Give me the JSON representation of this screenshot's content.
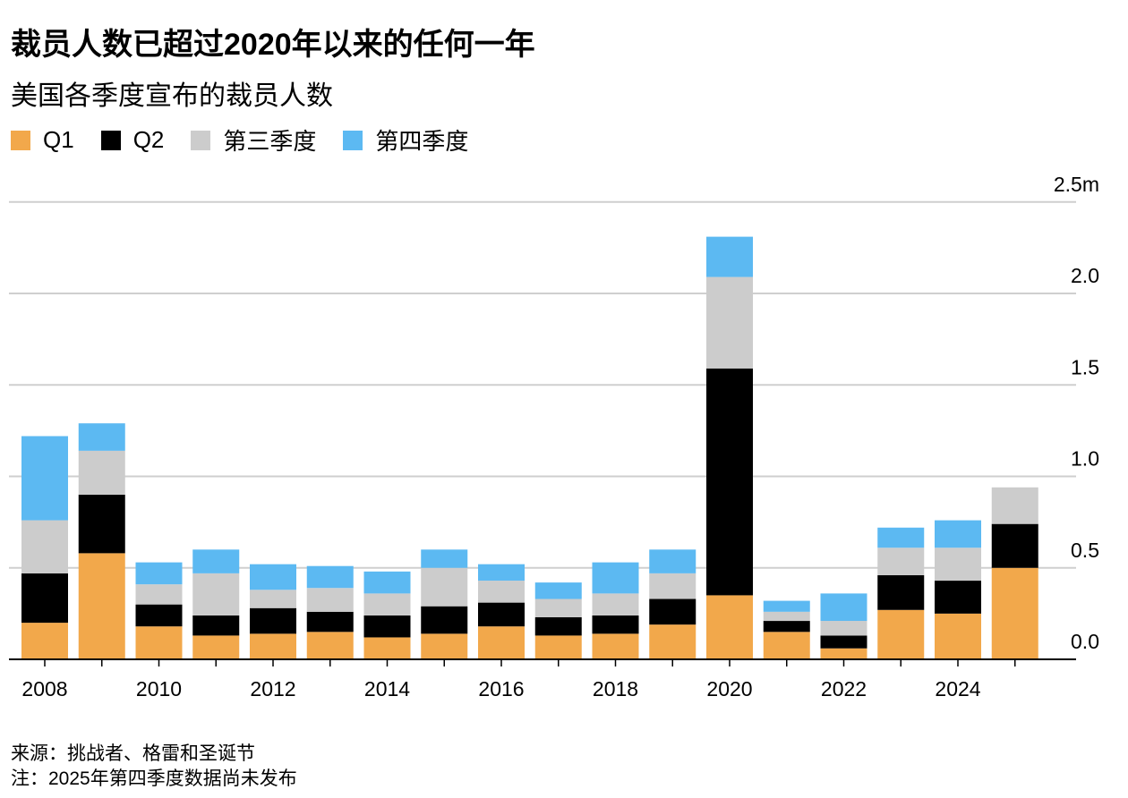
{
  "title": "裁员人数已超过2020年以来的任何一年",
  "subtitle": "美国各季度宣布的裁员人数",
  "footer": {
    "source": "来源：挑战者、格雷和圣诞节",
    "note": "注：2025年第四季度数据尚未发布"
  },
  "chart_data": {
    "type": "bar",
    "stacked": true,
    "title": "裁员人数已超过2020年以来的任何一年",
    "subtitle": "美国各季度宣布的裁员人数",
    "ylabel": "",
    "xlabel": "",
    "ylim": [
      0,
      2.5
    ],
    "yticks": [
      "0.0",
      "0.5",
      "1.0",
      "1.5",
      "2.0",
      "2.5m"
    ],
    "ytick_values": [
      0,
      0.5,
      1.0,
      1.5,
      2.0,
      2.5
    ],
    "grid": true,
    "legend_position": "top-left",
    "categories": [
      "2008",
      "2009",
      "2010",
      "2011",
      "2012",
      "2013",
      "2014",
      "2015",
      "2016",
      "2017",
      "2018",
      "2019",
      "2020",
      "2021",
      "2022",
      "2023",
      "2024",
      "2025"
    ],
    "xtick_labels": [
      "2008",
      "2010",
      "2012",
      "2014",
      "2016",
      "2018",
      "2020",
      "2022",
      "2024"
    ],
    "series": [
      {
        "name": "Q1",
        "color": "#f2a84b",
        "values": [
          0.2,
          0.58,
          0.18,
          0.13,
          0.14,
          0.15,
          0.12,
          0.14,
          0.18,
          0.13,
          0.14,
          0.19,
          0.35,
          0.15,
          0.06,
          0.27,
          0.25,
          0.5
        ]
      },
      {
        "name": "Q2",
        "color": "#000000",
        "values": [
          0.27,
          0.32,
          0.12,
          0.11,
          0.14,
          0.11,
          0.12,
          0.15,
          0.13,
          0.1,
          0.1,
          0.14,
          1.24,
          0.06,
          0.07,
          0.19,
          0.18,
          0.24
        ]
      },
      {
        "name": "第三季度",
        "color": "#cccccc",
        "values": [
          0.29,
          0.24,
          0.11,
          0.23,
          0.1,
          0.13,
          0.12,
          0.21,
          0.12,
          0.1,
          0.12,
          0.14,
          0.5,
          0.05,
          0.08,
          0.15,
          0.18,
          0.2
        ]
      },
      {
        "name": "第四季度",
        "color": "#5cb9f2",
        "values": [
          0.46,
          0.15,
          0.12,
          0.13,
          0.14,
          0.12,
          0.12,
          0.1,
          0.09,
          0.09,
          0.17,
          0.13,
          0.22,
          0.06,
          0.15,
          0.11,
          0.15,
          null
        ]
      }
    ]
  }
}
